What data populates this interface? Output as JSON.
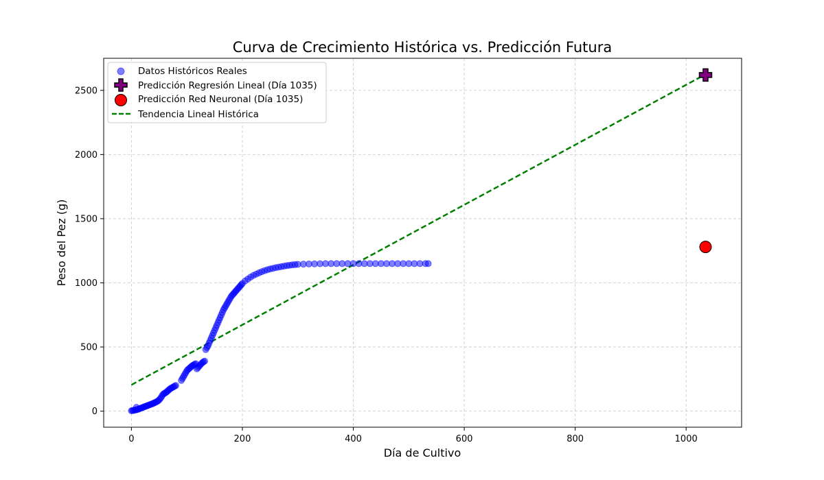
{
  "chart_data": {
    "type": "scatter",
    "title": "Curva de Crecimiento Histórica vs. Predicción Futura",
    "xlabel": "Día de Cultivo",
    "ylabel": "Peso del Pez (g)",
    "xlim": [
      -50,
      1100
    ],
    "ylim": [
      -125,
      2750
    ],
    "xticks": [
      0,
      200,
      400,
      600,
      800,
      1000
    ],
    "yticks": [
      0,
      500,
      1000,
      1500,
      2000,
      2500
    ],
    "grid": true,
    "legend_position": "top-left",
    "series": [
      {
        "name": "Datos Históricos Reales",
        "kind": "scatter",
        "color": "#0000ff",
        "x": [
          0,
          2,
          4,
          6,
          8,
          9,
          10,
          12,
          14,
          16,
          18,
          20,
          22,
          24,
          26,
          28,
          30,
          32,
          34,
          36,
          38,
          40,
          42,
          44,
          46,
          48,
          50,
          52,
          54,
          56,
          58,
          60,
          62,
          64,
          66,
          68,
          70,
          72,
          74,
          76,
          78,
          80,
          90,
          92,
          94,
          96,
          98,
          100,
          102,
          104,
          106,
          108,
          110,
          112,
          114,
          116,
          118,
          120,
          122,
          124,
          126,
          128,
          130,
          132,
          134,
          136,
          138,
          140,
          142,
          144,
          146,
          148,
          150,
          152,
          154,
          156,
          158,
          160,
          162,
          164,
          166,
          168,
          170,
          172,
          174,
          176,
          178,
          180,
          182,
          184,
          186,
          188,
          190,
          192,
          194,
          196,
          198,
          200,
          205,
          210,
          215,
          220,
          225,
          230,
          235,
          240,
          245,
          250,
          255,
          260,
          265,
          270,
          275,
          280,
          285,
          290,
          295,
          300,
          310,
          320,
          330,
          340,
          350,
          360,
          370,
          380,
          390,
          400,
          410,
          420,
          430,
          440,
          450,
          460,
          470,
          480,
          490,
          500,
          510,
          520,
          530,
          535
        ],
        "y": [
          3,
          5,
          6,
          8,
          10,
          30,
          12,
          15,
          18,
          22,
          25,
          28,
          32,
          35,
          38,
          42,
          45,
          48,
          52,
          55,
          58,
          62,
          66,
          70,
          75,
          80,
          88,
          98,
          110,
          125,
          135,
          140,
          145,
          152,
          160,
          168,
          175,
          180,
          185,
          190,
          195,
          200,
          240,
          255,
          270,
          285,
          300,
          315,
          325,
          332,
          340,
          348,
          355,
          360,
          365,
          370,
          330,
          340,
          350,
          360,
          370,
          378,
          385,
          390,
          480,
          495,
          510,
          530,
          550,
          570,
          590,
          610,
          630,
          650,
          670,
          690,
          710,
          730,
          750,
          770,
          790,
          805,
          820,
          835,
          850,
          865,
          880,
          895,
          905,
          915,
          925,
          935,
          945,
          955,
          965,
          975,
          985,
          995,
          1015,
          1030,
          1045,
          1058,
          1068,
          1078,
          1087,
          1095,
          1102,
          1108,
          1113,
          1118,
          1122,
          1126,
          1130,
          1134,
          1137,
          1140,
          1142,
          1144,
          1146,
          1147,
          1148,
          1149,
          1150,
          1150,
          1150,
          1150,
          1150,
          1150,
          1150,
          1150,
          1150,
          1150,
          1150,
          1150,
          1150,
          1150,
          1150,
          1150,
          1150,
          1150,
          1150,
          1150
        ]
      },
      {
        "name": "Predicción Regresión Lineal (Día 1035)",
        "kind": "marker-plus",
        "color": "#800080",
        "x": [
          1035
        ],
        "y": [
          2620
        ]
      },
      {
        "name": "Predicción Red Neuronal (Día 1035)",
        "kind": "marker-circle",
        "color": "#ff0000",
        "x": [
          1035
        ],
        "y": [
          1280
        ]
      },
      {
        "name": "Tendencia Lineal Histórica",
        "kind": "dashed-line",
        "color": "#008000",
        "x": [
          0,
          1035
        ],
        "y": [
          205,
          2625
        ]
      }
    ]
  }
}
